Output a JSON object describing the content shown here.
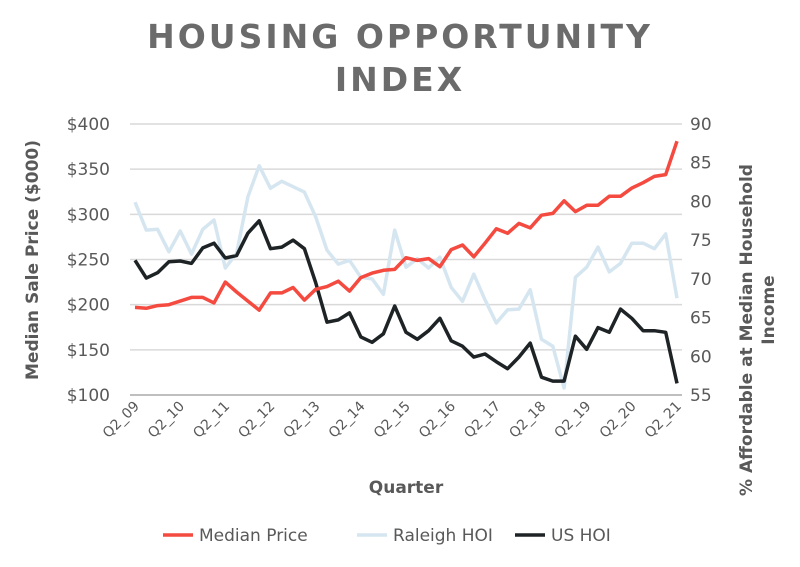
{
  "chart_data": {
    "type": "line",
    "title": "HOUSING OPPORTUNITY INDEX",
    "title_lines": [
      "HOUSING OPPORTUNITY",
      "INDEX"
    ],
    "xlabel": "Quarter",
    "ylabel": "Median Sale Price ($000)",
    "y2label": "% Affordable at Median Household Income",
    "y2label_lines": [
      "% Affordable at Median Household",
      "Income"
    ],
    "ylim": [
      100,
      400
    ],
    "y2lim": [
      55,
      90
    ],
    "yticks": [
      "$100",
      "$150",
      "$200",
      "$250",
      "$300",
      "$350",
      "$400"
    ],
    "y2ticks": [
      "55",
      "60",
      "65",
      "70",
      "75",
      "80",
      "85",
      "90"
    ],
    "xtick_labels": [
      "Q2_09",
      "Q2_10",
      "Q2_11",
      "Q2_12",
      "Q2_13",
      "Q2_14",
      "Q2_15",
      "Q2_16",
      "Q2_17",
      "Q2_18",
      "Q2_19",
      "Q2_20",
      "Q2_21"
    ],
    "grid": true,
    "legend_position": "bottom",
    "x_start": "Q2_09",
    "x_end": "Q2_21",
    "series": [
      {
        "name": "Median Price",
        "axis": "left",
        "color": "#f44a3f",
        "values": [
          197,
          196,
          199,
          200,
          204,
          208,
          208,
          202,
          225,
          214,
          204,
          194,
          213,
          213,
          219,
          205,
          217,
          220,
          226,
          215,
          230,
          235,
          238,
          239,
          252,
          249,
          251,
          242,
          261,
          266,
          253,
          268,
          284,
          279,
          290,
          285,
          299,
          301,
          315,
          303,
          310,
          310,
          320,
          320,
          329,
          335,
          342,
          344,
          381
        ]
      },
      {
        "name": "Raleigh HOI",
        "axis": "right",
        "color": "#d6e6f0",
        "values": [
          79.9,
          76.3,
          76.4,
          73.5,
          76.2,
          73.2,
          76.4,
          77.6,
          71.4,
          73.3,
          80.6,
          84.6,
          81.7,
          82.6,
          81.9,
          81.2,
          78.0,
          73.7,
          71.9,
          72.4,
          70.2,
          70.0,
          68.0,
          76.3,
          71.5,
          72.6,
          71.4,
          72.8,
          68.9,
          67.1,
          70.6,
          67.3,
          64.3,
          66.0,
          66.1,
          68.6,
          62.2,
          61.3,
          55.9,
          70.2,
          71.5,
          74.1,
          70.9,
          72.0,
          74.6,
          74.6,
          73.9,
          75.8,
          67.5
        ]
      },
      {
        "name": "US HOI",
        "axis": "right",
        "color": "#1e2326",
        "values": [
          72.4,
          70.1,
          70.8,
          72.2,
          72.3,
          72.0,
          74.0,
          74.6,
          72.7,
          73.0,
          75.9,
          77.5,
          73.9,
          74.1,
          75.0,
          73.9,
          69.5,
          64.4,
          64.7,
          65.6,
          62.5,
          61.8,
          62.9,
          66.5,
          63.1,
          62.2,
          63.3,
          64.9,
          62.0,
          61.3,
          59.9,
          60.3,
          59.3,
          58.4,
          59.9,
          61.7,
          57.3,
          56.8,
          56.8,
          62.6,
          60.9,
          63.7,
          63.1,
          66.1,
          64.9,
          63.3,
          63.3,
          63.1,
          56.5
        ]
      }
    ]
  }
}
